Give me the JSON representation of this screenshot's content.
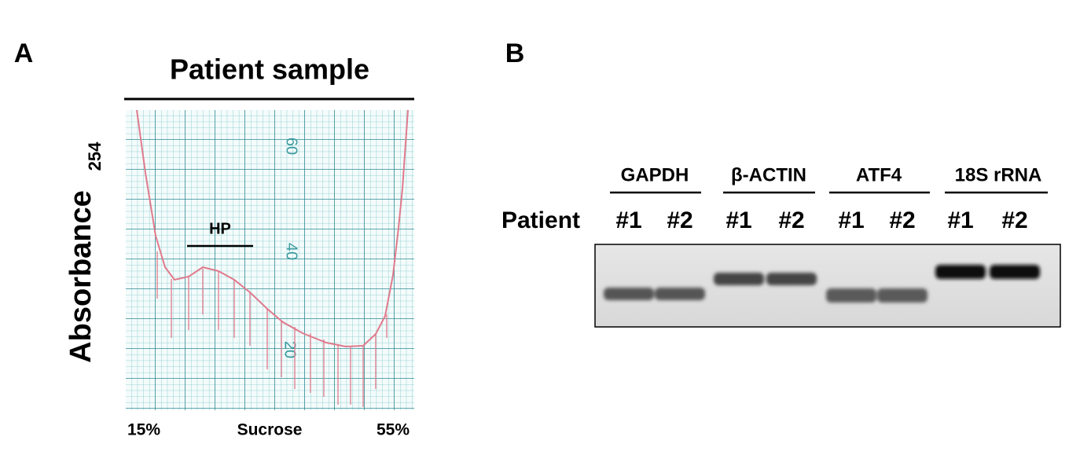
{
  "panel_a": {
    "label": "A",
    "title": "Patient sample",
    "y_label": "Absorbance",
    "y_label_sub": "254",
    "grid_labels": [
      "60",
      "40",
      "20"
    ],
    "annotation": "HP",
    "x_left": "15%",
    "x_center": "Sucrose",
    "x_right": "55%"
  },
  "panel_b": {
    "label": "B",
    "genes": [
      "GAPDH",
      "β-ACTIN",
      "ATF4",
      "18S rRNA"
    ],
    "row_label": "Patient",
    "samples": [
      "#1",
      "#2",
      "#1",
      "#2",
      "#1",
      "#2",
      "#1",
      "#2"
    ]
  }
}
